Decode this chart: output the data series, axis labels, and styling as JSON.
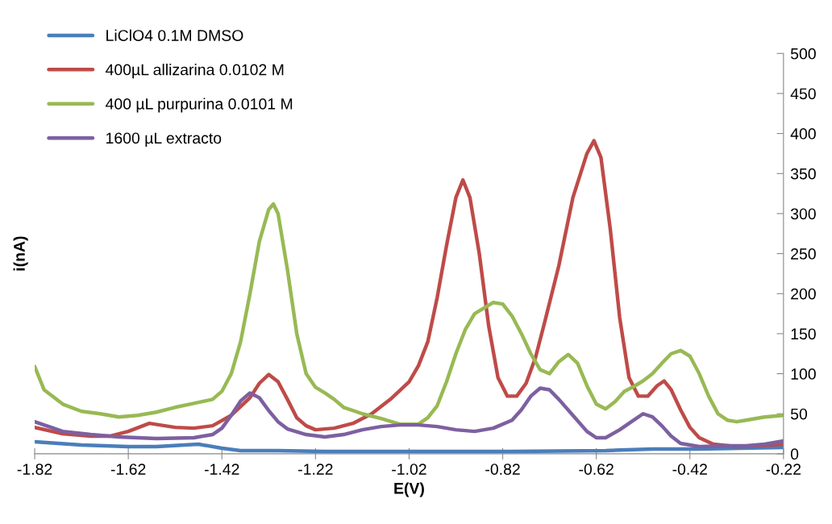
{
  "chart_data": {
    "type": "line",
    "xlabel": "E(V)",
    "ylabel": "i(nA)",
    "xlim": [
      -1.82,
      -0.22
    ],
    "xticks": [
      -1.82,
      -1.62,
      -1.42,
      -1.22,
      -1.02,
      -0.82,
      -0.62,
      -0.42,
      -0.22
    ],
    "ylim": [
      0,
      500
    ],
    "yticks": [
      0,
      50,
      100,
      150,
      200,
      250,
      300,
      350,
      400,
      450,
      500
    ],
    "grid": false,
    "legend": "top left",
    "marker": "none",
    "line_style": "solid",
    "series": [
      {
        "name": "LiClO4 0.1M DMSO",
        "color": "#4a7ebb",
        "x": [
          -1.82,
          -1.72,
          -1.62,
          -1.56,
          -1.5,
          -1.47,
          -1.42,
          -1.38,
          -1.3,
          -1.2,
          -1.0,
          -0.8,
          -0.6,
          -0.5,
          -0.4,
          -0.22
        ],
        "values": [
          15,
          11,
          9,
          9,
          11,
          12,
          7,
          4,
          4,
          3,
          3,
          3,
          4,
          6,
          6,
          8
        ]
      },
      {
        "name": "400µL allizarina 0.0102 M",
        "color": "#be4b48",
        "x": [
          -1.82,
          -1.76,
          -1.7,
          -1.66,
          -1.62,
          -1.575,
          -1.52,
          -1.48,
          -1.44,
          -1.4,
          -1.36,
          -1.34,
          -1.32,
          -1.3,
          -1.28,
          -1.26,
          -1.24,
          -1.22,
          -1.18,
          -1.14,
          -1.1,
          -1.06,
          -1.02,
          -1.0,
          -0.98,
          -0.96,
          -0.94,
          -0.92,
          -0.905,
          -0.89,
          -0.87,
          -0.85,
          -0.83,
          -0.81,
          -0.79,
          -0.77,
          -0.75,
          -0.73,
          -0.7,
          -0.67,
          -0.64,
          -0.625,
          -0.61,
          -0.59,
          -0.57,
          -0.55,
          -0.53,
          -0.51,
          -0.49,
          -0.475,
          -0.46,
          -0.44,
          -0.42,
          -0.4,
          -0.37,
          -0.32,
          -0.22
        ],
        "values": [
          33,
          25,
          22,
          22,
          28,
          38,
          33,
          32,
          35,
          48,
          70,
          88,
          99,
          90,
          68,
          45,
          35,
          30,
          32,
          38,
          50,
          68,
          90,
          110,
          140,
          195,
          260,
          320,
          342,
          320,
          250,
          160,
          95,
          72,
          72,
          88,
          120,
          165,
          235,
          320,
          375,
          391,
          370,
          280,
          170,
          95,
          72,
          72,
          85,
          91,
          80,
          55,
          33,
          20,
          12,
          9,
          12
        ]
      },
      {
        "name": "400 µL purpurina 0.0101 M",
        "color": "#98b954",
        "x": [
          -1.82,
          -1.8,
          -1.76,
          -1.72,
          -1.68,
          -1.64,
          -1.6,
          -1.56,
          -1.52,
          -1.48,
          -1.44,
          -1.42,
          -1.4,
          -1.38,
          -1.36,
          -1.34,
          -1.32,
          -1.31,
          -1.3,
          -1.28,
          -1.26,
          -1.24,
          -1.22,
          -1.2,
          -1.18,
          -1.16,
          -1.12,
          -1.08,
          -1.04,
          -1.0,
          -0.98,
          -0.96,
          -0.94,
          -0.92,
          -0.9,
          -0.88,
          -0.84,
          -0.82,
          -0.8,
          -0.78,
          -0.76,
          -0.74,
          -0.72,
          -0.7,
          -0.68,
          -0.66,
          -0.64,
          -0.62,
          -0.6,
          -0.58,
          -0.56,
          -0.54,
          -0.52,
          -0.5,
          -0.48,
          -0.46,
          -0.44,
          -0.42,
          -0.4,
          -0.38,
          -0.36,
          -0.34,
          -0.32,
          -0.3,
          -0.26,
          -0.22
        ],
        "values": [
          109,
          80,
          62,
          53,
          50,
          46,
          48,
          52,
          58,
          63,
          68,
          78,
          100,
          140,
          200,
          265,
          305,
          312,
          300,
          230,
          150,
          100,
          83,
          76,
          68,
          58,
          50,
          44,
          37,
          37,
          45,
          60,
          90,
          125,
          155,
          175,
          189,
          187,
          172,
          150,
          125,
          105,
          100,
          115,
          124,
          113,
          85,
          62,
          56,
          65,
          78,
          84,
          91,
          100,
          113,
          125,
          129,
          122,
          100,
          72,
          50,
          42,
          40,
          42,
          46,
          48
        ]
      },
      {
        "name": "1600 µL extracto",
        "color": "#7d60a0",
        "x": [
          -1.82,
          -1.76,
          -1.7,
          -1.64,
          -1.56,
          -1.48,
          -1.44,
          -1.42,
          -1.4,
          -1.38,
          -1.36,
          -1.34,
          -1.32,
          -1.3,
          -1.28,
          -1.24,
          -1.2,
          -1.16,
          -1.12,
          -1.08,
          -1.04,
          -1.0,
          -0.96,
          -0.92,
          -0.88,
          -0.84,
          -0.8,
          -0.78,
          -0.76,
          -0.74,
          -0.72,
          -0.7,
          -0.67,
          -0.64,
          -0.62,
          -0.6,
          -0.57,
          -0.54,
          -0.52,
          -0.5,
          -0.48,
          -0.46,
          -0.44,
          -0.4,
          -0.34,
          -0.3,
          -0.26,
          -0.22
        ],
        "values": [
          40,
          28,
          24,
          21,
          19,
          20,
          24,
          32,
          48,
          66,
          76,
          70,
          54,
          40,
          31,
          24,
          21,
          24,
          30,
          34,
          36,
          36,
          34,
          30,
          28,
          32,
          42,
          55,
          72,
          82,
          80,
          68,
          48,
          28,
          20,
          20,
          30,
          42,
          50,
          46,
          35,
          22,
          13,
          9,
          10,
          10,
          12,
          16
        ]
      }
    ]
  }
}
